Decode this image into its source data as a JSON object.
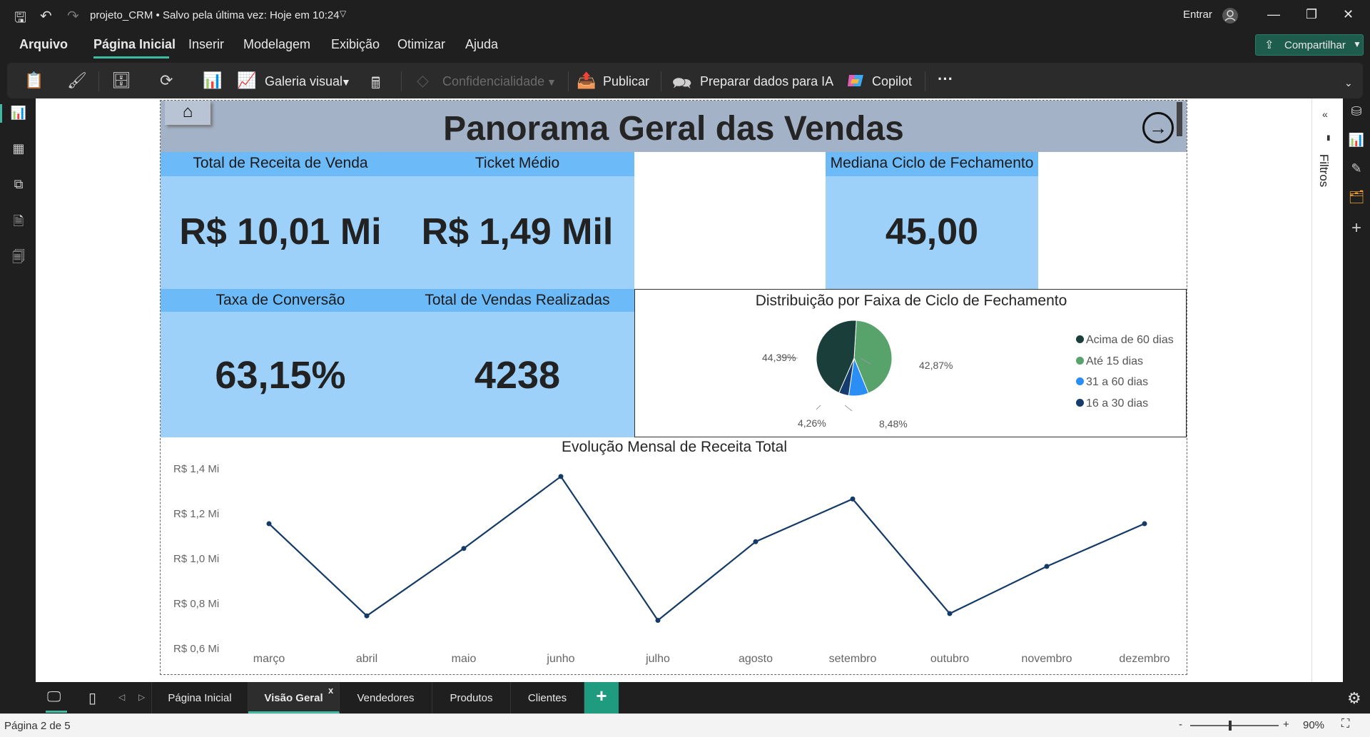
{
  "titlebar": {
    "doc_title": "projeto_CRM • Salvo pela última vez: Hoje em 10:24",
    "signin": "Entrar",
    "minimize": "—",
    "maximize": "❐",
    "close": "✕"
  },
  "menu": {
    "items": [
      "Arquivo",
      "Página Inicial",
      "Inserir",
      "Modelagem",
      "Exibição",
      "Otimizar",
      "Ajuda"
    ],
    "share": "Compartilhar"
  },
  "ribbon": {
    "galeria": "Galeria visual",
    "confidencialidade": "Confidencialidade",
    "publicar": "Publicar",
    "preparar": "Preparar dados para IA",
    "copilot": "Copilot",
    "more": "···"
  },
  "filters": {
    "label": "Filtros"
  },
  "report": {
    "title": "Panorama Geral das Vendas",
    "kpis": [
      {
        "title": "Total de Receita de Venda",
        "value": "R$ 10,01 Mi"
      },
      {
        "title": "Ticket Médio",
        "value": "R$ 1,49 Mil"
      },
      {
        "title": "Mediana Ciclo de Fechamento",
        "value": "45,00"
      },
      {
        "title": "Taxa de Conversão",
        "value": "63,15%"
      },
      {
        "title": "Total de Vendas Realizadas",
        "value": "4238"
      }
    ]
  },
  "colors": {
    "pie": [
      "#1a3f3b",
      "#58a36c",
      "#2a8ef5",
      "#163b6d"
    ],
    "line": "#143a66"
  },
  "chart_data": [
    {
      "type": "pie",
      "title": "Distribuição por Faixa de Ciclo de Fechamento",
      "labels": [
        "Acima de 60 dias",
        "Até 15 dias",
        "31 a 60 dias",
        "16 a 30 dias"
      ],
      "values": [
        44.39,
        42.87,
        8.48,
        4.26
      ],
      "value_labels": [
        "44,39%",
        "42,87%",
        "8,48%",
        "4,26%"
      ],
      "legend": "right"
    },
    {
      "type": "line",
      "title": "Evolução Mensal de Receita Total",
      "categories": [
        "março",
        "abril",
        "maio",
        "junho",
        "julho",
        "agosto",
        "setembro",
        "outubro",
        "novembro",
        "dezembro"
      ],
      "values": [
        1.13,
        0.72,
        1.02,
        1.34,
        0.7,
        1.05,
        1.24,
        0.73,
        0.94,
        1.13
      ],
      "ylim": [
        0.6,
        1.4
      ],
      "yticks": [
        1.4,
        1.2,
        1.0,
        0.8,
        0.6
      ],
      "ytick_labels": [
        "R$ 1,4 Mi",
        "R$ 1,2 Mi",
        "R$ 1,0 Mi",
        "R$ 0,8 Mi",
        "R$ 0,6 Mi"
      ],
      "unit": "R$ Mi"
    }
  ],
  "pages": {
    "tabs": [
      "Página Inicial",
      "Visão Geral",
      "Vendedores",
      "Produtos",
      "Clientes"
    ],
    "active": "Visão Geral",
    "close": "x",
    "add": "+"
  },
  "status": {
    "page": "Página 2 de 5",
    "zoom": "90%",
    "minus": "-",
    "plus": "+"
  }
}
